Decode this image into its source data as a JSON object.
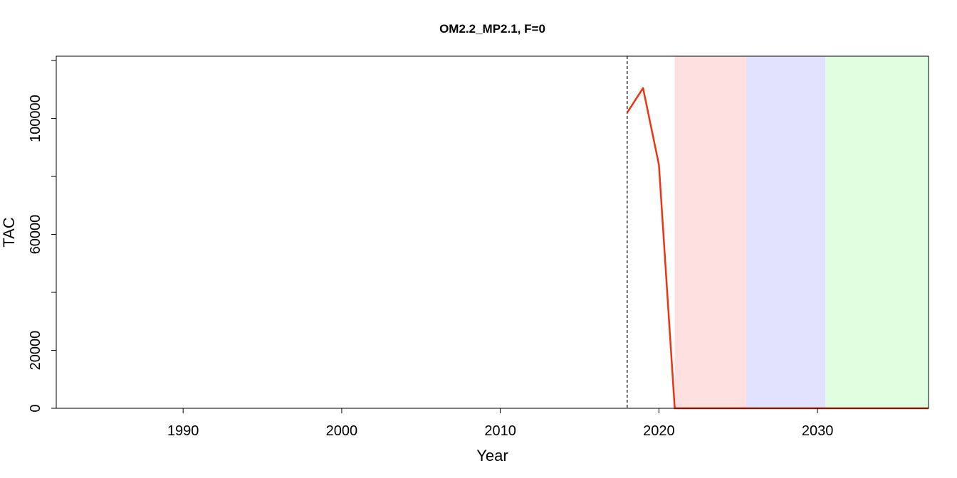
{
  "chart_data": {
    "type": "line",
    "title": "OM2.2_MP2.1, F=0",
    "xlabel": "Year",
    "ylabel": "TAC",
    "xlim": [
      1982,
      2037
    ],
    "ylim": [
      0,
      121500
    ],
    "x_ticks": [
      1990,
      2000,
      2010,
      2020,
      2030
    ],
    "x_tick_labels": [
      "1990",
      "2000",
      "2010",
      "2020",
      "2030"
    ],
    "y_ticks": [
      0,
      20000,
      60000,
      100000
    ],
    "y_tick_labels": [
      "0",
      "20000",
      "60000",
      "100000"
    ],
    "y_minor_ticks": [
      0,
      20000,
      40000,
      60000,
      80000,
      100000,
      120000
    ],
    "vline": {
      "x": 2018,
      "style": "dashed",
      "color": "#000000"
    },
    "regions": [
      {
        "x0": 2021.0,
        "x1": 2025.5,
        "color": "#ffe0e0"
      },
      {
        "x0": 2025.5,
        "x1": 2030.5,
        "color": "#e2e2ff"
      },
      {
        "x0": 2030.5,
        "x1": 2037.0,
        "color": "#e0ffe0"
      }
    ],
    "series": [
      {
        "color": "#ee3311",
        "x": [
          2018,
          2019,
          2020,
          2021,
          2022,
          2023,
          2024,
          2025,
          2026,
          2027,
          2028,
          2029,
          2030,
          2031,
          2032,
          2033,
          2034,
          2035,
          2036,
          2037
        ],
        "values": [
          102000,
          110500,
          84000,
          0,
          0,
          0,
          0,
          0,
          0,
          0,
          0,
          0,
          0,
          0,
          0,
          0,
          0,
          0,
          0,
          0
        ]
      }
    ],
    "grid": false,
    "legend": "none"
  }
}
